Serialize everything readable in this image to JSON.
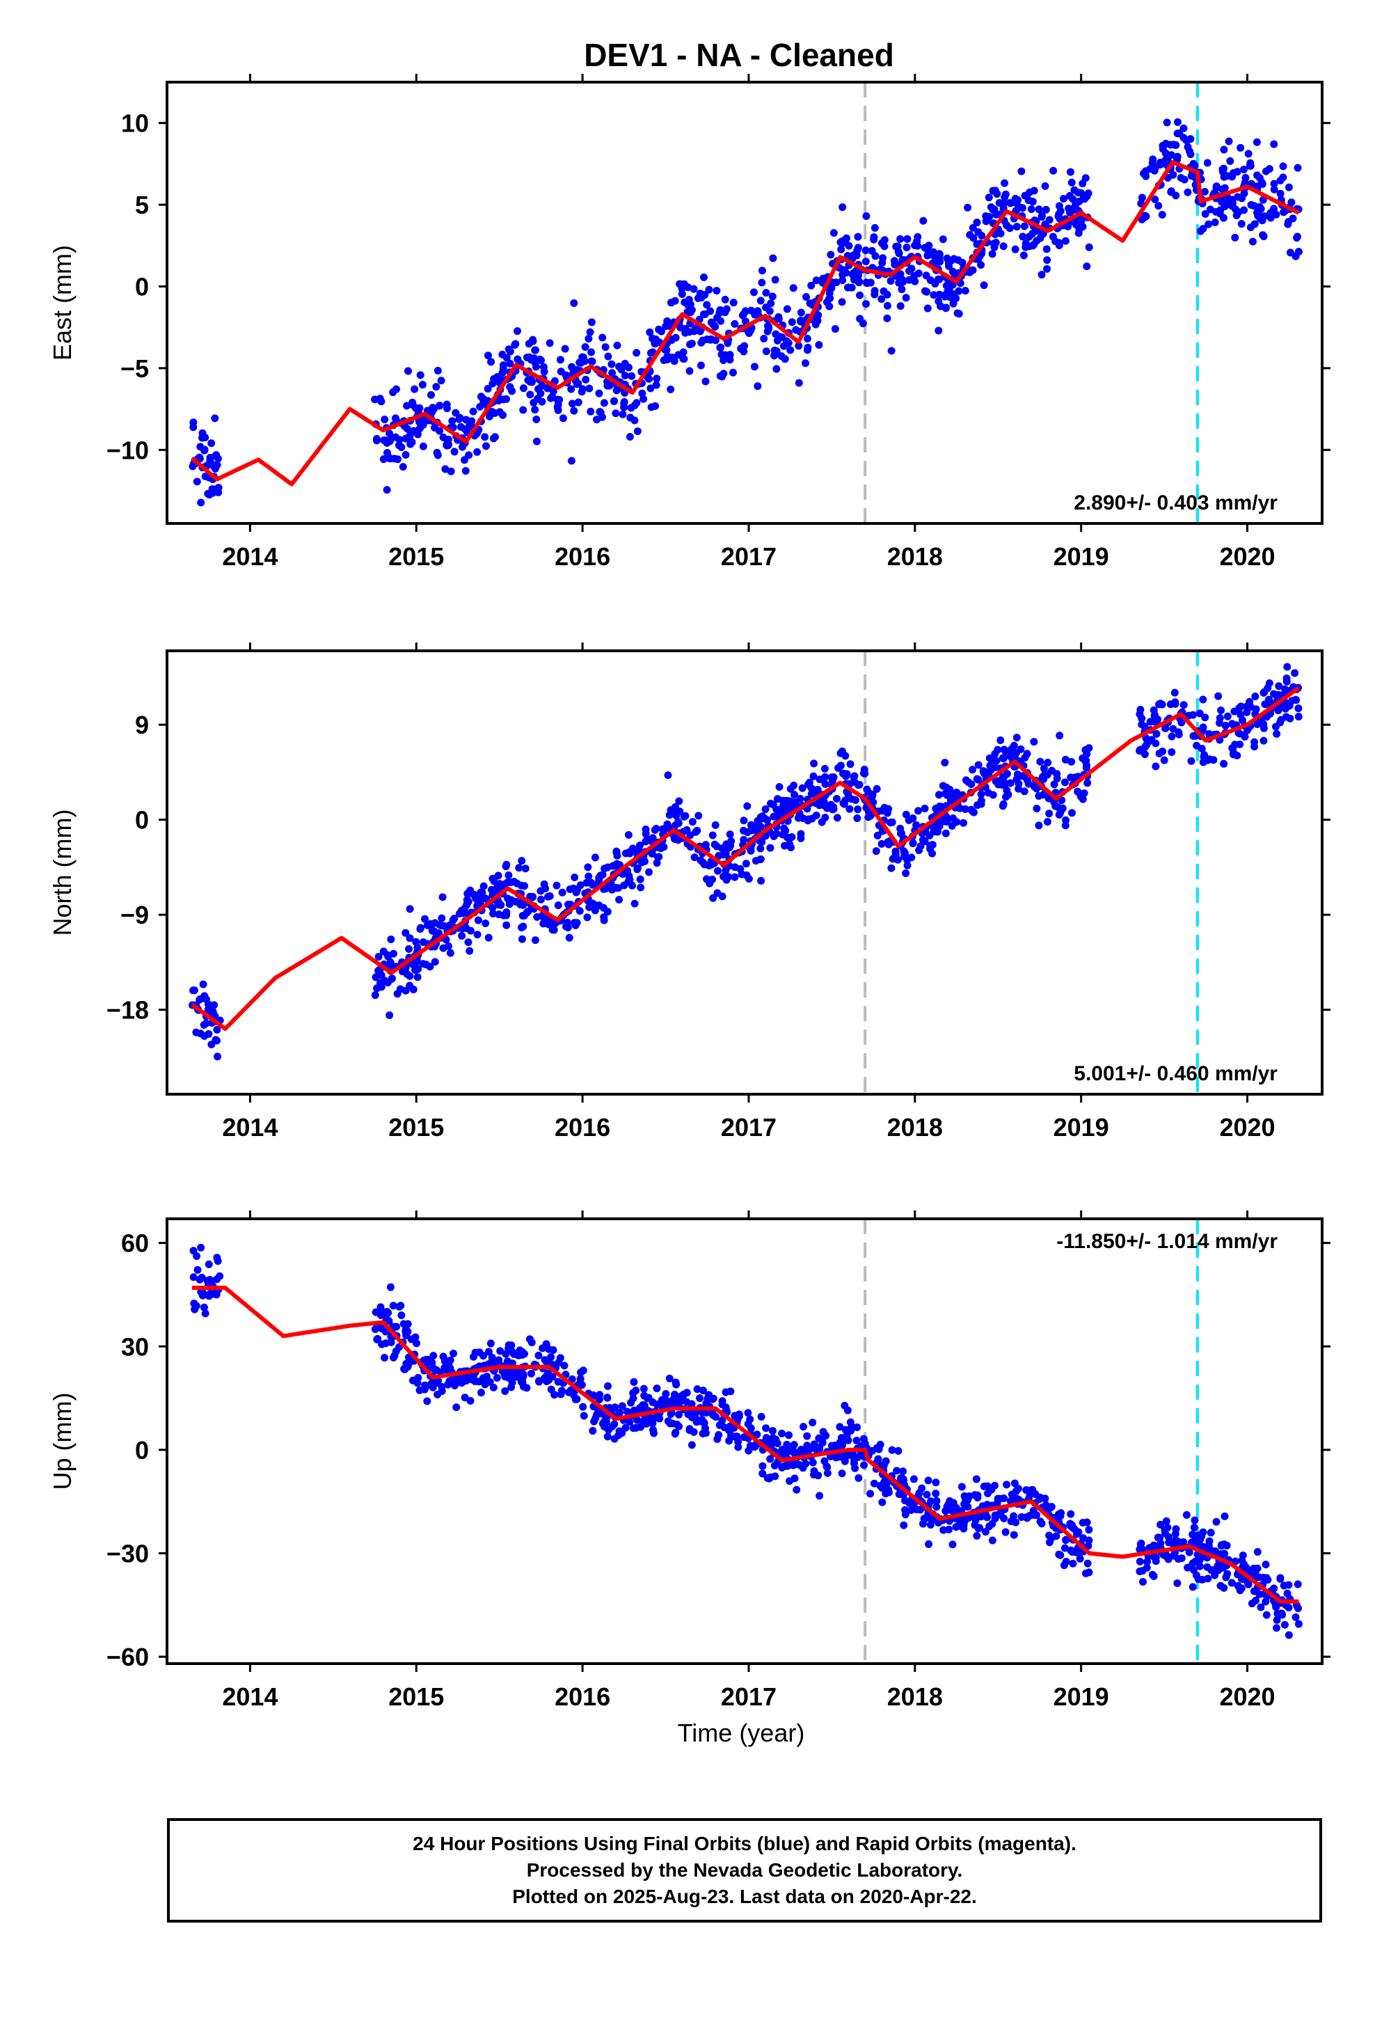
{
  "title": "DEV1  - NA - Cleaned",
  "xlabel": "Time (year)",
  "caption": [
    "24 Hour Positions Using Final Orbits (blue) and Rapid Orbits (magenta).",
    "Processed by the Nevada Geodetic Laboratory.",
    "Plotted on 2025-Aug-23. Last data on 2020-Apr-22."
  ],
  "colors": {
    "data": "#0000ff",
    "model": "#ff0000",
    "gray_line": "#bbbbbb",
    "cyan_line": "#00e5ff"
  },
  "chart_data": [
    {
      "type": "scatter",
      "ylabel": "East (mm)",
      "xlim": [
        2013.5,
        2020.45
      ],
      "ylim": [
        -14.5,
        12.5
      ],
      "xticks": [
        2014,
        2015,
        2016,
        2017,
        2018,
        2019,
        2020
      ],
      "yticks": [
        -10,
        -5,
        0,
        5,
        10
      ],
      "annotation": "2.890+/- 0.403 mm/yr",
      "annotation_pos": "bottom-right",
      "vlines": [
        {
          "x": 2017.7,
          "color": "gray"
        },
        {
          "x": 2019.7,
          "color": "cyan"
        }
      ],
      "data_range": [
        2013.65,
        2020.31
      ],
      "gaps": [
        [
          2013.82,
          2014.75
        ],
        [
          2019.05,
          2019.35
        ]
      ],
      "model_x": [
        2013.65,
        2013.8,
        2014.05,
        2014.25,
        2014.6,
        2014.8,
        2015.05,
        2015.3,
        2015.6,
        2015.85,
        2016.05,
        2016.3,
        2016.6,
        2016.85,
        2017.1,
        2017.3,
        2017.55,
        2017.7,
        2017.85,
        2018.0,
        2018.25,
        2018.55,
        2018.8,
        2019.0,
        2019.25,
        2019.55,
        2019.7,
        2019.72,
        2020.0,
        2020.31
      ],
      "model_y": [
        -10.5,
        -11.8,
        -10.6,
        -12.1,
        -7.5,
        -8.8,
        -7.8,
        -9.5,
        -4.8,
        -6.2,
        -4.9,
        -6.5,
        -1.7,
        -3.2,
        -1.8,
        -3.4,
        1.8,
        1.0,
        0.7,
        1.8,
        0.3,
        4.6,
        3.4,
        4.5,
        2.8,
        7.6,
        7.0,
        5.2,
        6.1,
        4.5
      ],
      "scatter_spread": 1.3
    },
    {
      "type": "scatter",
      "ylabel": "North (mm)",
      "xlim": [
        2013.5,
        2020.45
      ],
      "ylim": [
        -26,
        16
      ],
      "xticks": [
        2014,
        2015,
        2016,
        2017,
        2018,
        2019,
        2020
      ],
      "yticks": [
        -18,
        -9,
        0,
        9
      ],
      "annotation": "5.001+/- 0.460 mm/yr",
      "annotation_pos": "bottom-right",
      "vlines": [
        {
          "x": 2017.7,
          "color": "gray"
        },
        {
          "x": 2019.7,
          "color": "cyan"
        }
      ],
      "data_range": [
        2013.65,
        2020.31
      ],
      "gaps": [
        [
          2013.82,
          2014.75
        ],
        [
          2019.05,
          2019.35
        ]
      ],
      "model_x": [
        2013.65,
        2013.85,
        2014.15,
        2014.55,
        2014.85,
        2015.3,
        2015.55,
        2015.85,
        2016.25,
        2016.55,
        2016.85,
        2017.1,
        2017.55,
        2017.7,
        2017.9,
        2018.2,
        2018.6,
        2018.85,
        2019.3,
        2019.6,
        2019.75,
        2020.0,
        2020.31
      ],
      "model_y": [
        -17.5,
        -19.8,
        -15.0,
        -11.2,
        -14.5,
        -9.5,
        -6.5,
        -9.5,
        -4.5,
        -1.0,
        -4.3,
        -1.0,
        3.5,
        2.0,
        -2.5,
        1.0,
        5.5,
        2.0,
        7.5,
        10.0,
        7.5,
        9.0,
        12.5
      ],
      "scatter_spread": 1.5
    },
    {
      "type": "scatter",
      "ylabel": "Up (mm)",
      "xlim": [
        2013.5,
        2020.45
      ],
      "ylim": [
        -62,
        67
      ],
      "xticks": [
        2014,
        2015,
        2016,
        2017,
        2018,
        2019,
        2020
      ],
      "yticks": [
        -60,
        -30,
        0,
        30,
        60
      ],
      "annotation": "-11.850+/- 1.014 mm/yr",
      "annotation_pos": "top-right",
      "vlines": [
        {
          "x": 2017.7,
          "color": "gray"
        },
        {
          "x": 2019.7,
          "color": "cyan"
        }
      ],
      "data_range": [
        2013.65,
        2020.31
      ],
      "gaps": [
        [
          2013.82,
          2014.75
        ],
        [
          2019.05,
          2019.35
        ]
      ],
      "model_x": [
        2013.65,
        2013.85,
        2014.2,
        2014.6,
        2014.8,
        2015.1,
        2015.5,
        2015.8,
        2016.2,
        2016.55,
        2016.8,
        2017.2,
        2017.6,
        2017.7,
        2017.72,
        2018.15,
        2018.7,
        2019.05,
        2019.25,
        2019.65,
        2019.9,
        2020.2,
        2020.31
      ],
      "model_y": [
        47,
        47,
        33,
        36,
        37,
        21,
        24,
        24,
        9,
        12,
        12,
        -3,
        0,
        0,
        -3,
        -20,
        -15,
        -30,
        -31,
        -28,
        -33,
        -44,
        -44
      ],
      "scatter_spread": 4.0
    }
  ]
}
